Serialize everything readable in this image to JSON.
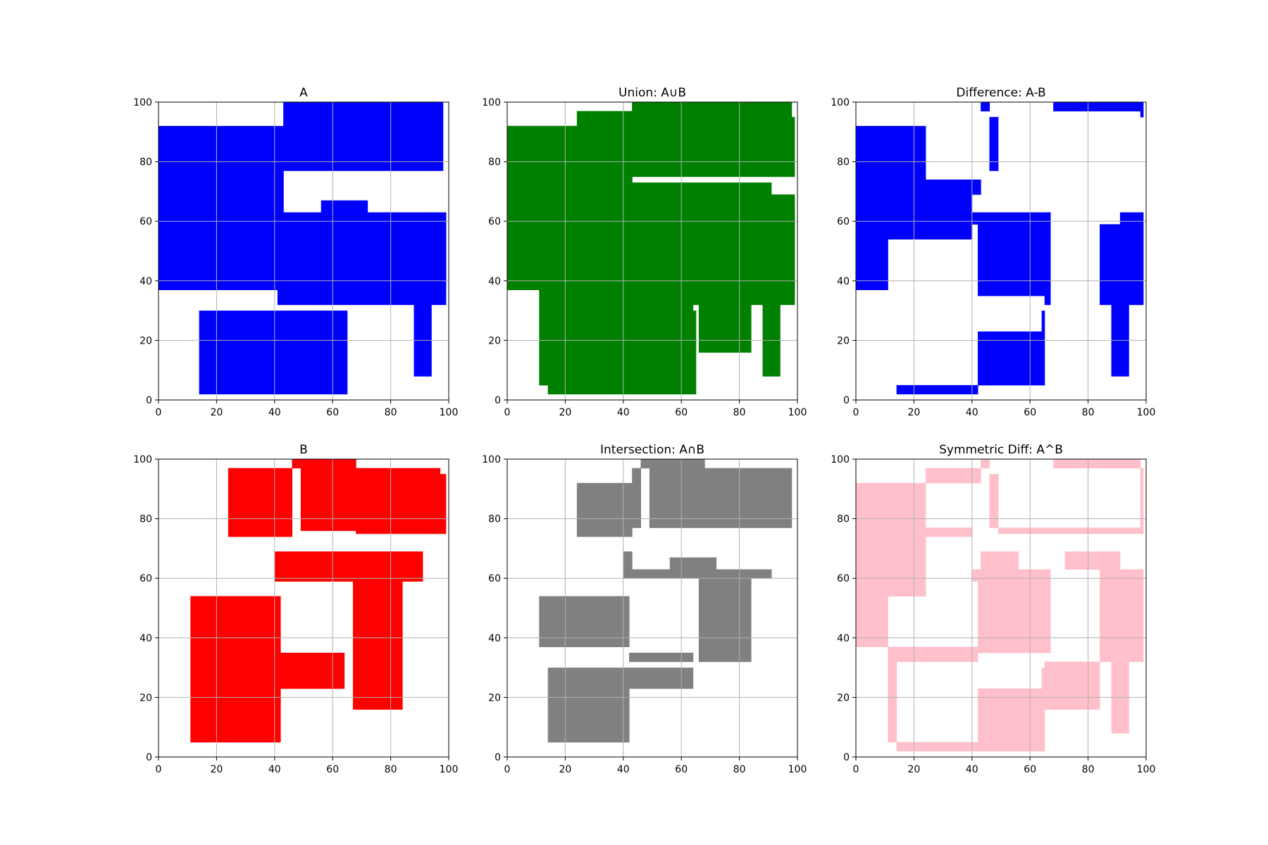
{
  "chart_data": [
    {
      "type": "area",
      "title": "A",
      "color": "#0000ff",
      "xlim": [
        0,
        100
      ],
      "ylim": [
        0,
        100
      ],
      "xticks": [
        "0",
        "20",
        "40",
        "60",
        "80",
        "100"
      ],
      "yticks": [
        "0",
        "20",
        "40",
        "60",
        "80",
        "100"
      ],
      "grid": true,
      "rects": [
        [
          0,
          37,
          43,
          92
        ],
        [
          43,
          77,
          98,
          100
        ],
        [
          0,
          63,
          43,
          77
        ],
        [
          0,
          37,
          99,
          63
        ],
        [
          41,
          32,
          99,
          63
        ],
        [
          56,
          63,
          72,
          67
        ],
        [
          14,
          2,
          65,
          30
        ],
        [
          88,
          8,
          94,
          32
        ]
      ]
    },
    {
      "type": "area",
      "title": "Union: A∪B",
      "color": "#008000",
      "xlim": [
        0,
        100
      ],
      "ylim": [
        0,
        100
      ],
      "xticks": [
        "0",
        "20",
        "40",
        "60",
        "80",
        "100"
      ],
      "yticks": [
        "0",
        "20",
        "40",
        "60",
        "80",
        "100"
      ],
      "grid": true,
      "rects": [
        [
          0,
          37,
          43,
          92
        ],
        [
          24,
          74,
          43,
          97
        ],
        [
          43,
          75,
          98,
          100
        ],
        [
          98,
          75,
          99,
          95
        ],
        [
          0,
          63,
          43,
          92
        ],
        [
          0,
          37,
          99,
          63
        ],
        [
          41,
          32,
          99,
          69
        ],
        [
          11,
          5,
          42,
          54
        ],
        [
          14,
          2,
          65,
          30
        ],
        [
          42,
          23,
          64,
          35
        ],
        [
          66,
          16,
          84,
          32
        ],
        [
          88,
          8,
          94,
          32
        ],
        [
          43,
          69,
          91,
          73
        ]
      ]
    },
    {
      "type": "area",
      "title": "Difference: A-B",
      "color": "#0000ff",
      "xlim": [
        0,
        100
      ],
      "ylim": [
        0,
        100
      ],
      "xticks": [
        "0",
        "20",
        "40",
        "60",
        "80",
        "100"
      ],
      "yticks": [
        "0",
        "20",
        "40",
        "60",
        "80",
        "100"
      ],
      "grid": true,
      "rects": [
        [
          0,
          37,
          11,
          92
        ],
        [
          11,
          54,
          24,
          92
        ],
        [
          24,
          54,
          40,
          74
        ],
        [
          40,
          69,
          43,
          74
        ],
        [
          43,
          97,
          46,
          100
        ],
        [
          46,
          77,
          49,
          95
        ],
        [
          68,
          97,
          98,
          100
        ],
        [
          98,
          95,
          99,
          100
        ],
        [
          40,
          59,
          67,
          63
        ],
        [
          42,
          35,
          67,
          59
        ],
        [
          65,
          32,
          67,
          35
        ],
        [
          64,
          23,
          65,
          30
        ],
        [
          42,
          5,
          65,
          23
        ],
        [
          14,
          2,
          42,
          5
        ],
        [
          84,
          32,
          99,
          59
        ],
        [
          91,
          59,
          99,
          63
        ],
        [
          88,
          8,
          94,
          32
        ]
      ]
    },
    {
      "type": "area",
      "title": "B",
      "color": "#ff0000",
      "xlim": [
        0,
        100
      ],
      "ylim": [
        0,
        100
      ],
      "xticks": [
        "0",
        "20",
        "40",
        "60",
        "80",
        "100"
      ],
      "yticks": [
        "0",
        "20",
        "40",
        "60",
        "80",
        "100"
      ],
      "grid": true,
      "rects": [
        [
          24,
          74,
          46,
          97
        ],
        [
          46,
          97,
          68,
          100
        ],
        [
          49,
          76,
          68,
          97
        ],
        [
          68,
          75,
          97,
          97
        ],
        [
          97,
          75,
          99,
          95
        ],
        [
          40,
          59,
          91,
          69
        ],
        [
          67,
          16,
          84,
          59
        ],
        [
          11,
          5,
          42,
          54
        ],
        [
          42,
          23,
          64,
          35
        ]
      ]
    },
    {
      "type": "area",
      "title": "Intersection: A∩B",
      "color": "#808080",
      "xlim": [
        0,
        100
      ],
      "ylim": [
        0,
        100
      ],
      "xticks": [
        "0",
        "20",
        "40",
        "60",
        "80",
        "100"
      ],
      "yticks": [
        "0",
        "20",
        "40",
        "60",
        "80",
        "100"
      ],
      "grid": true,
      "rects": [
        [
          24,
          74,
          43,
          92
        ],
        [
          43,
          77,
          46,
          97
        ],
        [
          46,
          97,
          68,
          100
        ],
        [
          49,
          77,
          98,
          97
        ],
        [
          40,
          60,
          91,
          63
        ],
        [
          40,
          63,
          43,
          69
        ],
        [
          56,
          63,
          72,
          67
        ],
        [
          66,
          32,
          84,
          60
        ],
        [
          11,
          37,
          42,
          54
        ],
        [
          42,
          32,
          64,
          35
        ],
        [
          14,
          5,
          42,
          30
        ],
        [
          42,
          23,
          64,
          30
        ]
      ]
    },
    {
      "type": "area",
      "title": "Symmetric Diff: A^B",
      "color": "#ffc0cb",
      "xlim": [
        0,
        100
      ],
      "ylim": [
        0,
        100
      ],
      "xticks": [
        "0",
        "20",
        "40",
        "60",
        "80",
        "100"
      ],
      "yticks": [
        "0",
        "20",
        "40",
        "60",
        "80",
        "100"
      ],
      "grid": true,
      "rects": [
        [
          0,
          37,
          11,
          92
        ],
        [
          11,
          54,
          24,
          92
        ],
        [
          24,
          74,
          40,
          77
        ],
        [
          24,
          92,
          43,
          97
        ],
        [
          43,
          97,
          46,
          100
        ],
        [
          46,
          77,
          49,
          95
        ],
        [
          68,
          97,
          98,
          100
        ],
        [
          98,
          75,
          99,
          97
        ],
        [
          49,
          75,
          99,
          77
        ],
        [
          43,
          63,
          56,
          69
        ],
        [
          72,
          63,
          91,
          69
        ],
        [
          40,
          59,
          67,
          63
        ],
        [
          42,
          35,
          67,
          59
        ],
        [
          11,
          32,
          42,
          37
        ],
        [
          11,
          5,
          14,
          32
        ],
        [
          14,
          2,
          42,
          5
        ],
        [
          42,
          2,
          65,
          23
        ],
        [
          64,
          23,
          65,
          30
        ],
        [
          65,
          16,
          84,
          32
        ],
        [
          84,
          32,
          99,
          63
        ],
        [
          88,
          8,
          94,
          32
        ]
      ]
    }
  ]
}
